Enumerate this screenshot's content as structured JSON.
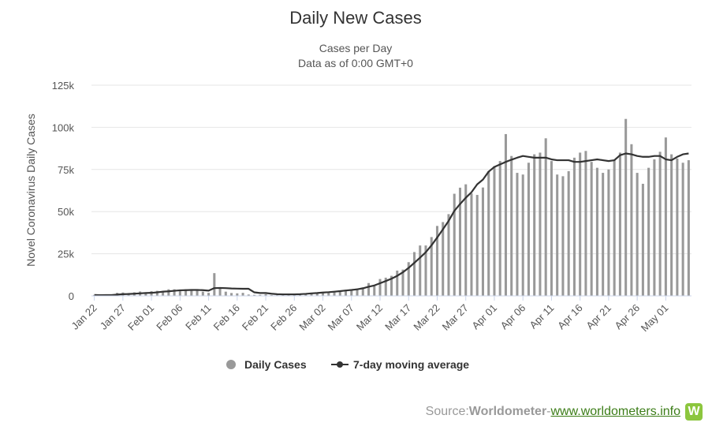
{
  "chart_data": {
    "type": "bar",
    "title": "Daily New Cases",
    "subtitle": [
      "Cases per Day",
      "Data as of 0:00 GMT+0"
    ],
    "ylabel": "Novel Coronavirus Daily Cases",
    "ylim": [
      0,
      125000
    ],
    "y_ticks": [
      0,
      25000,
      50000,
      75000,
      100000,
      125000
    ],
    "y_tick_labels": [
      "0",
      "25k",
      "50k",
      "75k",
      "100k",
      "125k"
    ],
    "x_tick_labels": [
      "Jan 22",
      "Jan 27",
      "Feb 01",
      "Feb 06",
      "Feb 11",
      "Feb 16",
      "Feb 21",
      "Feb 26",
      "Mar 02",
      "Mar 07",
      "Mar 12",
      "Mar 17",
      "Mar 22",
      "Mar 27",
      "Apr 01",
      "Apr 06",
      "Apr 11",
      "Apr 16",
      "Apr 21",
      "Apr 26",
      "May 01"
    ],
    "x_tick_every": 5,
    "grid": true,
    "legend_position": "bottom-center",
    "series": [
      {
        "name": "Daily Cases",
        "kind": "bar",
        "color": "#999999",
        "values": [
          550,
          100,
          650,
          550,
          1800,
          2000,
          1700,
          2100,
          2600,
          2000,
          2800,
          3000,
          3000,
          3900,
          3900,
          3600,
          3900,
          3500,
          3100,
          2500,
          1800,
          13500,
          4500,
          2500,
          1700,
          1500,
          1800,
          800,
          600,
          600,
          1000,
          500,
          400,
          600,
          700,
          900,
          1300,
          1400,
          1800,
          2000,
          2200,
          2500,
          2600,
          3100,
          3600,
          3800,
          4400,
          5000,
          7600,
          6000,
          10000,
          10800,
          11900,
          15000,
          15600,
          20000,
          26000,
          29900,
          29900,
          34900,
          41500,
          43800,
          48500,
          60600,
          64200,
          66200,
          60800,
          59900,
          64300,
          74000,
          77000,
          80000,
          96000,
          83000,
          73000,
          72000,
          79000,
          84000,
          85000,
          93500,
          80000,
          72000,
          71000,
          74000,
          82000,
          85000,
          86000,
          79500,
          76000,
          73000,
          75000,
          80500,
          85000,
          105000,
          90000,
          73000,
          66500,
          76000,
          81000,
          85500,
          94000,
          84000,
          81500,
          79000,
          80500
        ]
      },
      {
        "name": "7-day moving average",
        "kind": "line",
        "color": "#333333",
        "values": [
          550,
          450,
          500,
          500,
          750,
          1000,
          1100,
          1300,
          1500,
          1700,
          1800,
          2100,
          2500,
          2700,
          3000,
          3300,
          3400,
          3500,
          3500,
          3400,
          3100,
          4600,
          4700,
          4600,
          4400,
          4300,
          4200,
          4200,
          2100,
          1700,
          1700,
          1300,
          1000,
          900,
          900,
          900,
          1000,
          1200,
          1500,
          1700,
          2000,
          2200,
          2500,
          2800,
          3200,
          3500,
          3900,
          4500,
          5400,
          6200,
          7500,
          8800,
          10200,
          11900,
          14000,
          16600,
          19600,
          22700,
          25900,
          30000,
          34600,
          39500,
          44500,
          50400,
          54500,
          58200,
          61500,
          66200,
          69000,
          73700,
          76500,
          78000,
          79500,
          80800,
          82000,
          83000,
          82500,
          82000,
          82000,
          82000,
          81000,
          80500,
          80500,
          80500,
          79500,
          79500,
          80000,
          80500,
          81000,
          80500,
          80000,
          80500,
          83500,
          84500,
          84000,
          83000,
          82500,
          82500,
          83000,
          83000,
          81000,
          80500,
          82500,
          84000,
          84500
        ]
      }
    ]
  },
  "credit": {
    "prefix": "Source: ",
    "source": "Worldometer",
    "separator": " - ",
    "link": "www.worldometers.info",
    "logo_letter": "W"
  }
}
